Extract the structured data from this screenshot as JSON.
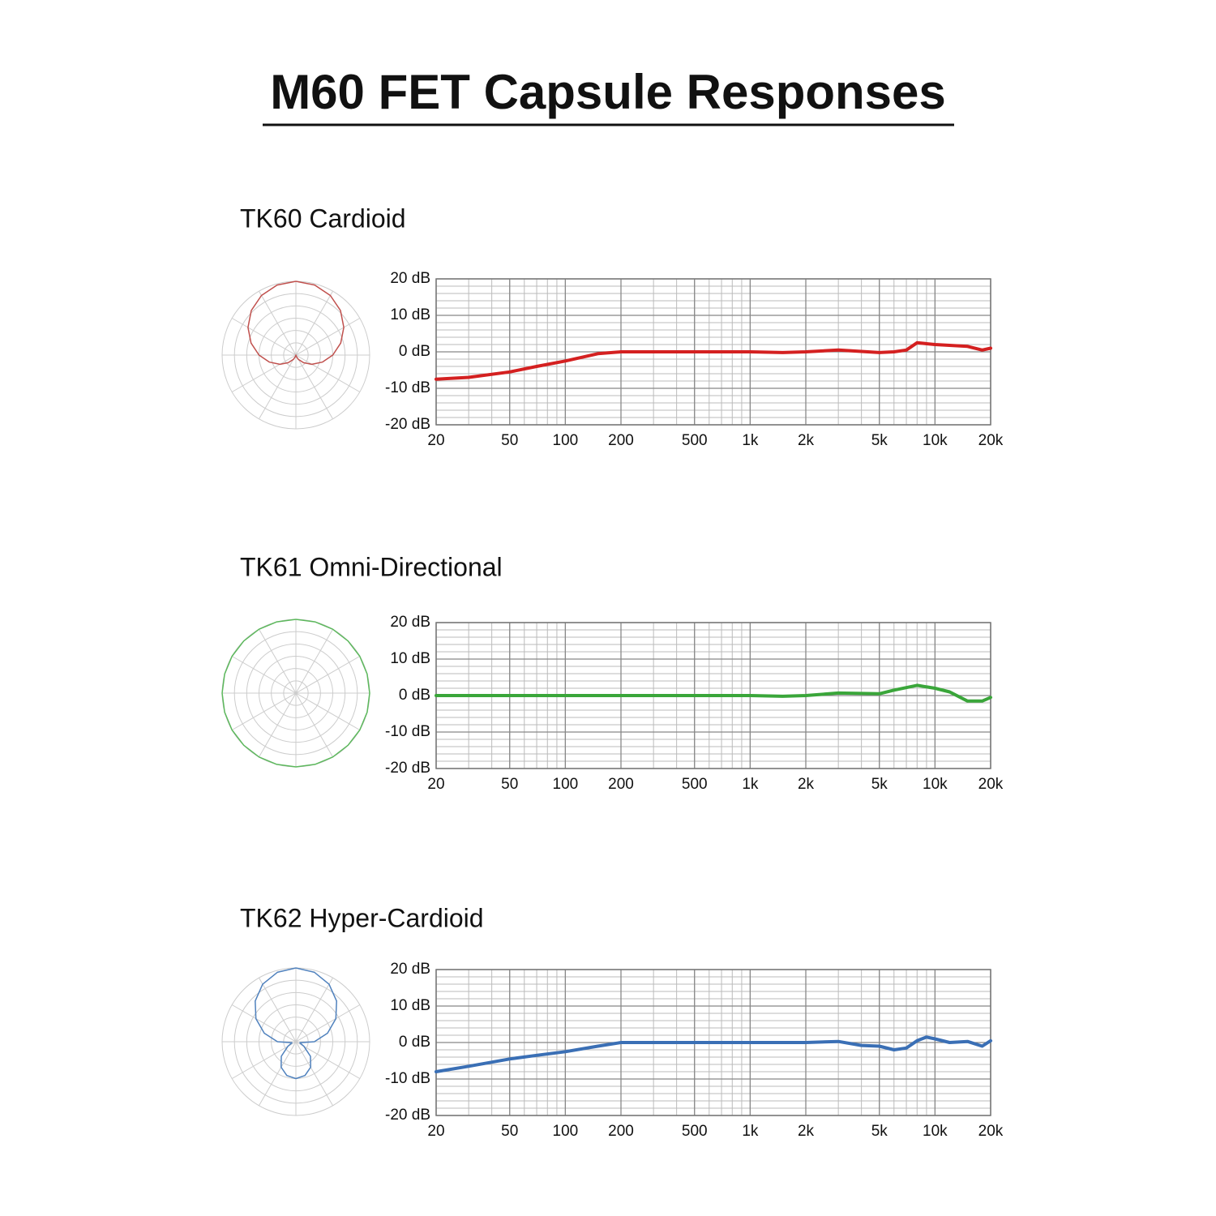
{
  "title": "M60 FET Capsule Responses",
  "chart_data": [
    {
      "type": "line",
      "title": "TK60 Cardioid",
      "x": [
        20,
        30,
        50,
        70,
        100,
        150,
        200,
        500,
        1000,
        1500,
        2000,
        3000,
        5000,
        6000,
        7000,
        8000,
        10000,
        15000,
        18000,
        20000
      ],
      "series": [
        {
          "color": "#d42020",
          "values": [
            -7.5,
            -7,
            -5.5,
            -4,
            -2.5,
            -0.5,
            0,
            0,
            0,
            -0.2,
            0,
            0.5,
            -0.2,
            0,
            0.5,
            2.5,
            2,
            1.5,
            0.5,
            1
          ]
        }
      ],
      "xlim": [
        20,
        20000
      ],
      "xscale": "log",
      "xticks": [
        20,
        50,
        100,
        200,
        500,
        {
          "value": 1000,
          "label": "1k"
        },
        {
          "value": 2000,
          "label": "2k"
        },
        {
          "value": 5000,
          "label": "5k"
        },
        {
          "value": 10000,
          "label": "10k"
        },
        {
          "value": 20000,
          "label": "20k"
        }
      ],
      "ylim": [
        -20,
        20
      ],
      "yticks": [
        {
          "value": 20,
          "label": "20 dB"
        },
        {
          "value": 10,
          "label": "10 dB"
        },
        {
          "value": 0,
          "label": "0 dB"
        },
        {
          "value": -10,
          "label": "-10 dB"
        },
        {
          "value": -20,
          "label": "-20 dB"
        }
      ],
      "grid": true,
      "polar": {
        "type": "polar",
        "color": "#c0504d",
        "theta": [
          0,
          15,
          30,
          45,
          60,
          75,
          90,
          105,
          120,
          135,
          150,
          165,
          180,
          195,
          210,
          225,
          240,
          255,
          270,
          285,
          300,
          315,
          330,
          345,
          360
        ],
        "r": [
          1,
          0.983,
          0.933,
          0.854,
          0.75,
          0.629,
          0.5,
          0.371,
          0.25,
          0.146,
          0.067,
          0.017,
          0,
          0.017,
          0.067,
          0.146,
          0.25,
          0.371,
          0.5,
          0.629,
          0.75,
          0.854,
          0.933,
          0.983,
          1
        ]
      }
    },
    {
      "type": "line",
      "title": "TK61 Omni-Directional",
      "x": [
        20,
        50,
        100,
        200,
        500,
        1000,
        1500,
        2000,
        3000,
        5000,
        6000,
        8000,
        10000,
        12000,
        15000,
        18000,
        20000
      ],
      "series": [
        {
          "color": "#3aa63a",
          "values": [
            0,
            0,
            0,
            0,
            0,
            0,
            -0.2,
            0,
            0.7,
            0.5,
            1.5,
            2.8,
            2,
            1,
            -1.5,
            -1.5,
            -0.5
          ]
        }
      ],
      "xlim": [
        20,
        20000
      ],
      "xscale": "log",
      "xticks": [
        20,
        50,
        100,
        200,
        500,
        {
          "value": 1000,
          "label": "1k"
        },
        {
          "value": 2000,
          "label": "2k"
        },
        {
          "value": 5000,
          "label": "5k"
        },
        {
          "value": 10000,
          "label": "10k"
        },
        {
          "value": 20000,
          "label": "20k"
        }
      ],
      "ylim": [
        -20,
        20
      ],
      "yticks": [
        {
          "value": 20,
          "label": "20 dB"
        },
        {
          "value": 10,
          "label": "10 dB"
        },
        {
          "value": 0,
          "label": "0 dB"
        },
        {
          "value": -10,
          "label": "-10 dB"
        },
        {
          "value": -20,
          "label": "-20 dB"
        }
      ],
      "grid": true,
      "polar": {
        "type": "polar",
        "color": "#5cb85c",
        "theta": [
          0,
          15,
          30,
          45,
          60,
          75,
          90,
          105,
          120,
          135,
          150,
          165,
          180,
          195,
          210,
          225,
          240,
          255,
          270,
          285,
          300,
          315,
          330,
          345,
          360
        ],
        "r": [
          1,
          1,
          1,
          1,
          1,
          1,
          1,
          1,
          1,
          1,
          1,
          1,
          1,
          1,
          1,
          1,
          1,
          1,
          1,
          1,
          1,
          1,
          1,
          1,
          1
        ]
      }
    },
    {
      "type": "line",
      "title": "TK62 Hyper-Cardioid",
      "x": [
        20,
        30,
        50,
        70,
        100,
        150,
        200,
        500,
        1000,
        2000,
        3000,
        4000,
        5000,
        6000,
        7000,
        8000,
        9000,
        10000,
        12000,
        15000,
        18000,
        20000
      ],
      "series": [
        {
          "color": "#3a6fb5",
          "values": [
            -8,
            -6.5,
            -4.5,
            -3.5,
            -2.5,
            -1,
            0,
            0,
            0,
            0,
            0.3,
            -0.8,
            -1,
            -2,
            -1.5,
            0.5,
            1.5,
            1,
            0,
            0.3,
            -1,
            0.5
          ]
        }
      ],
      "xlim": [
        20,
        20000
      ],
      "xscale": "log",
      "xticks": [
        20,
        50,
        100,
        200,
        500,
        {
          "value": 1000,
          "label": "1k"
        },
        {
          "value": 2000,
          "label": "2k"
        },
        {
          "value": 5000,
          "label": "5k"
        },
        {
          "value": 10000,
          "label": "10k"
        },
        {
          "value": 20000,
          "label": "20k"
        }
      ],
      "ylim": [
        -20,
        20
      ],
      "yticks": [
        {
          "value": 20,
          "label": "20 dB"
        },
        {
          "value": 10,
          "label": "10 dB"
        },
        {
          "value": 0,
          "label": "0 dB"
        },
        {
          "value": -10,
          "label": "-10 dB"
        },
        {
          "value": -20,
          "label": "-20 dB"
        }
      ],
      "grid": true,
      "polar": {
        "type": "polar",
        "color": "#4f81bd",
        "theta": [
          0,
          15,
          30,
          45,
          60,
          75,
          90,
          105,
          120,
          135,
          150,
          165,
          180,
          195,
          210,
          225,
          240,
          255,
          270,
          285,
          300,
          315,
          330,
          345,
          360
        ],
        "r": [
          1,
          0.974,
          0.9,
          0.78,
          0.625,
          0.444,
          0.25,
          0.056,
          0.125,
          0.28,
          0.4,
          0.474,
          0.5,
          0.474,
          0.4,
          0.28,
          0.125,
          0.056,
          0.25,
          0.444,
          0.625,
          0.78,
          0.9,
          0.974,
          1
        ]
      }
    }
  ]
}
